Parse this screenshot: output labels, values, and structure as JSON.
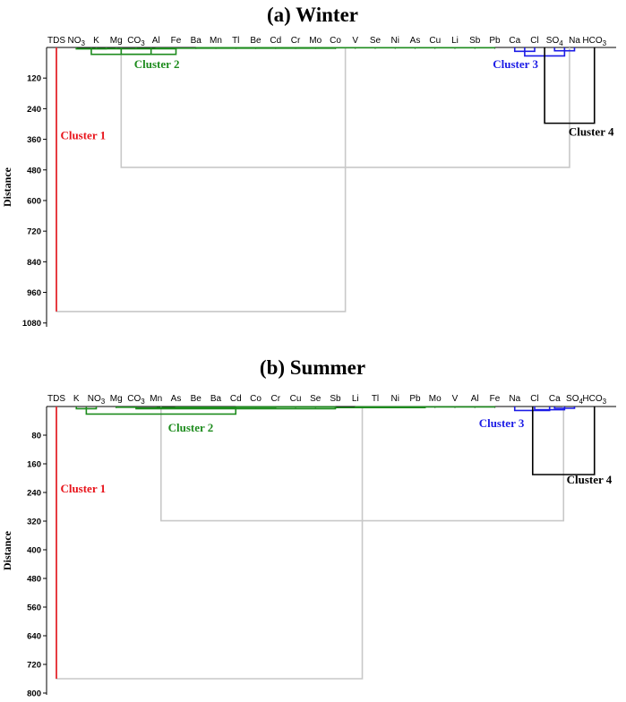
{
  "colors": {
    "cluster1": "#e8141b",
    "cluster2": "#1e8c1e",
    "cluster3": "#1c1ce6",
    "cluster4": "#000000",
    "link": "#c8c8c8"
  },
  "chart_data": [
    {
      "type": "dendrogram",
      "title": "(a) Winter",
      "ylabel": "Distance",
      "yticks": [
        120,
        240,
        360,
        480,
        600,
        720,
        840,
        960,
        1080
      ],
      "ylim": [
        0,
        1095
      ],
      "leaves": [
        "TDS",
        "NO3",
        "K",
        "Mg",
        "CO3",
        "Al",
        "Fe",
        "Ba",
        "Mn",
        "Tl",
        "Be",
        "Cd",
        "Cr",
        "Mo",
        "Co",
        "V",
        "Se",
        "Ni",
        "As",
        "Cu",
        "Li",
        "Sb",
        "Pb",
        "Ca",
        "Cl",
        "SO4",
        "Na",
        "HCO3"
      ],
      "cluster_labels": [
        {
          "cluster": 1,
          "text": "Cluster 1"
        },
        {
          "cluster": 2,
          "text": "Cluster 2"
        },
        {
          "cluster": 3,
          "text": "Cluster 3"
        },
        {
          "cluster": 4,
          "text": "Cluster 4"
        }
      ],
      "merges": [
        {
          "a": 7,
          "b": 8,
          "height": 1,
          "cluster": 2
        },
        {
          "a": 8,
          "b": 9,
          "height": 1,
          "cluster": 2
        },
        {
          "a": 9,
          "b": 10,
          "height": 1,
          "cluster": 2
        },
        {
          "a": 10,
          "b": 11,
          "height": 1,
          "cluster": 2
        },
        {
          "a": 11,
          "b": 12,
          "height": 1,
          "cluster": 2
        },
        {
          "a": 12,
          "b": 13,
          "height": 1,
          "cluster": 2
        },
        {
          "a": 13,
          "b": 14,
          "height": 1,
          "cluster": 2
        },
        {
          "a": 14,
          "b": 15,
          "height": 1,
          "cluster": 2
        },
        {
          "a": 15,
          "b": 16,
          "height": 1,
          "cluster": 2
        },
        {
          "a": 16,
          "b": 17,
          "height": 1,
          "cluster": 2
        },
        {
          "a": 17,
          "b": 18,
          "height": 1,
          "cluster": 2
        },
        {
          "a": 18,
          "b": 19,
          "height": 1,
          "cluster": 2
        },
        {
          "a": 19,
          "b": 20,
          "height": 1,
          "cluster": 2
        },
        {
          "a": 20,
          "b": 21,
          "height": 1,
          "cluster": 2
        },
        {
          "a": 21,
          "b": 22,
          "height": 1,
          "cluster": 2
        },
        {
          "a": 6,
          "b": 14,
          "height": 3,
          "cluster": 2
        },
        {
          "a": 5,
          "b": 6,
          "height": 3,
          "cluster": 2
        },
        {
          "a": 2,
          "b": 3,
          "height": 4,
          "cluster": 2
        },
        {
          "a": 1,
          "b": 2.5,
          "height": 5,
          "cluster": 2
        },
        {
          "a": 4,
          "b": 5.5,
          "height": 4,
          "cluster": 2
        },
        {
          "a": 1.75,
          "b": 4.75,
          "height": 27,
          "cluster": 2
        },
        {
          "a": 1,
          "b": 6,
          "height": 5,
          "cluster": 2
        },
        {
          "a": 3.25,
          "b": 6,
          "height": 27,
          "cluster": 2
        },
        {
          "a": 25,
          "b": 26,
          "height": 13,
          "cluster": 3
        },
        {
          "a": 23,
          "b": 24,
          "height": 15,
          "cluster": 3
        },
        {
          "a": 23.5,
          "b": 25.5,
          "height": 33,
          "cluster": 3
        },
        {
          "a": 24.5,
          "b": 27,
          "height": 297,
          "cluster": 4
        },
        {
          "a": 3.25,
          "b": 25.75,
          "height": 470,
          "cluster": 0
        },
        {
          "a": 0,
          "b": 14.5,
          "height": 1035,
          "cluster": 0
        }
      ]
    },
    {
      "type": "dendrogram",
      "title": "(b) Summer",
      "ylabel": "Distance",
      "yticks": [
        80,
        160,
        240,
        320,
        400,
        480,
        560,
        640,
        720,
        800
      ],
      "ylim": [
        0,
        805
      ],
      "leaves": [
        "TDS",
        "K",
        "NO3",
        "Mg",
        "CO3",
        "Mn",
        "As",
        "Be",
        "Ba",
        "Cd",
        "Co",
        "Cr",
        "Cu",
        "Se",
        "Sb",
        "Li",
        "Tl",
        "Ni",
        "Pb",
        "Mo",
        "V",
        "Al",
        "Fe",
        "Na",
        "Cl",
        "Ca",
        "SO4",
        "HCO3"
      ],
      "cluster_labels": [
        {
          "cluster": 1,
          "text": "Cluster 1"
        },
        {
          "cluster": 2,
          "text": "Cluster 2"
        },
        {
          "cluster": 3,
          "text": "Cluster 3"
        },
        {
          "cluster": 4,
          "text": "Cluster 4"
        }
      ],
      "merges": [
        {
          "a": 15,
          "b": 16,
          "height": 1,
          "cluster": 2
        },
        {
          "a": 16,
          "b": 17,
          "height": 1,
          "cluster": 2
        },
        {
          "a": 17,
          "b": 18,
          "height": 1,
          "cluster": 2
        },
        {
          "a": 18,
          "b": 19,
          "height": 1,
          "cluster": 2
        },
        {
          "a": 19,
          "b": 20,
          "height": 1,
          "cluster": 2
        },
        {
          "a": 20,
          "b": 21,
          "height": 1,
          "cluster": 2
        },
        {
          "a": 21,
          "b": 22,
          "height": 1,
          "cluster": 2
        },
        {
          "a": 9,
          "b": 10,
          "height": 1,
          "cluster": 2
        },
        {
          "a": 10,
          "b": 11,
          "height": 1,
          "cluster": 2
        },
        {
          "a": 11,
          "b": 12,
          "height": 1,
          "cluster": 2
        },
        {
          "a": 12,
          "b": 13,
          "height": 1,
          "cluster": 2
        },
        {
          "a": 13,
          "b": 14,
          "height": 1,
          "cluster": 2
        },
        {
          "a": 8,
          "b": 11,
          "height": 2,
          "cluster": 2
        },
        {
          "a": 7,
          "b": 8,
          "height": 2,
          "cluster": 2
        },
        {
          "a": 6,
          "b": 7,
          "height": 2,
          "cluster": 2
        },
        {
          "a": 5,
          "b": 6,
          "height": 3,
          "cluster": 2
        },
        {
          "a": 14,
          "b": 18.5,
          "height": 3,
          "cluster": 2
        },
        {
          "a": 4,
          "b": 9,
          "height": 4,
          "cluster": 2
        },
        {
          "a": 3,
          "b": 4,
          "height": 2,
          "cluster": 2
        },
        {
          "a": 1,
          "b": 2,
          "height": 6,
          "cluster": 2
        },
        {
          "a": 4,
          "b": 14,
          "height": 6,
          "cluster": 2
        },
        {
          "a": 1.5,
          "b": 9,
          "height": 21,
          "cluster": 2
        },
        {
          "a": 25,
          "b": 26,
          "height": 5,
          "cluster": 3
        },
        {
          "a": 24,
          "b": 25.5,
          "height": 9,
          "cluster": 3
        },
        {
          "a": 23,
          "b": 24.75,
          "height": 11,
          "cluster": 3
        },
        {
          "a": 23.9,
          "b": 27,
          "height": 190,
          "cluster": 4
        },
        {
          "a": 5.25,
          "b": 25.45,
          "height": 319,
          "cluster": 0
        },
        {
          "a": 0,
          "b": 15.35,
          "height": 760,
          "cluster": 0
        }
      ]
    }
  ]
}
